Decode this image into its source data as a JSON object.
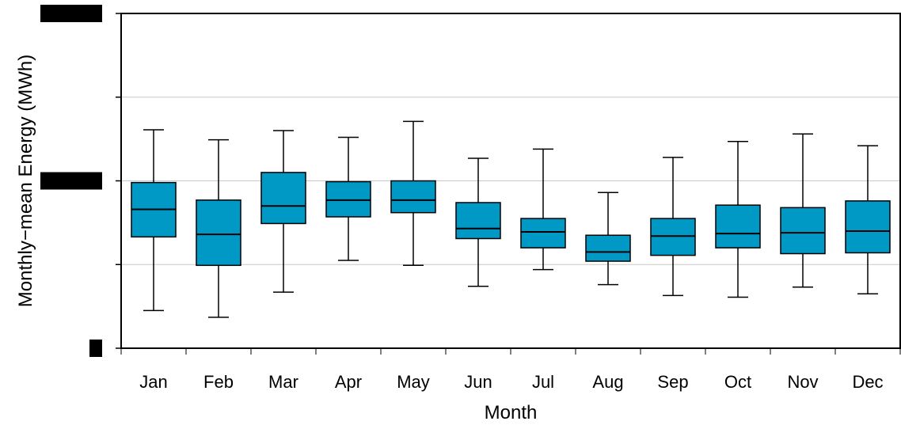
{
  "chart_data": {
    "type": "box",
    "title": "",
    "xlabel": "Month",
    "ylabel": "Monthly−mean Energy (MWh)",
    "ylim": [
      0,
      4
    ],
    "grid": "horizontal",
    "box_color": "#0099c6",
    "grid_color": "#c8c8c8",
    "y_tick_values": [
      0,
      1,
      2,
      3,
      4
    ],
    "y_tick_labels_redacted": [
      0,
      2,
      4
    ],
    "categories": [
      "Jan",
      "Feb",
      "Mar",
      "Apr",
      "May",
      "Jun",
      "Jul",
      "Aug",
      "Sep",
      "Oct",
      "Nov",
      "Dec"
    ],
    "boxes": [
      {
        "min": 0.45,
        "q1": 1.33,
        "median": 1.66,
        "q3": 1.98,
        "max": 2.61
      },
      {
        "min": 0.37,
        "q1": 0.99,
        "median": 1.36,
        "q3": 1.77,
        "max": 2.49
      },
      {
        "min": 0.67,
        "q1": 1.49,
        "median": 1.7,
        "q3": 2.1,
        "max": 2.6
      },
      {
        "min": 1.05,
        "q1": 1.57,
        "median": 1.77,
        "q3": 1.99,
        "max": 2.52
      },
      {
        "min": 0.99,
        "q1": 1.62,
        "median": 1.77,
        "q3": 2.0,
        "max": 2.71
      },
      {
        "min": 0.74,
        "q1": 1.31,
        "median": 1.43,
        "q3": 1.74,
        "max": 2.27
      },
      {
        "min": 0.94,
        "q1": 1.2,
        "median": 1.39,
        "q3": 1.55,
        "max": 2.38
      },
      {
        "min": 0.76,
        "q1": 1.04,
        "median": 1.15,
        "q3": 1.35,
        "max": 1.86
      },
      {
        "min": 0.63,
        "q1": 1.11,
        "median": 1.34,
        "q3": 1.55,
        "max": 2.28
      },
      {
        "min": 0.61,
        "q1": 1.2,
        "median": 1.37,
        "q3": 1.71,
        "max": 2.47
      },
      {
        "min": 0.73,
        "q1": 1.13,
        "median": 1.38,
        "q3": 1.68,
        "max": 2.56
      },
      {
        "min": 0.65,
        "q1": 1.14,
        "median": 1.4,
        "q3": 1.76,
        "max": 2.42
      }
    ]
  }
}
